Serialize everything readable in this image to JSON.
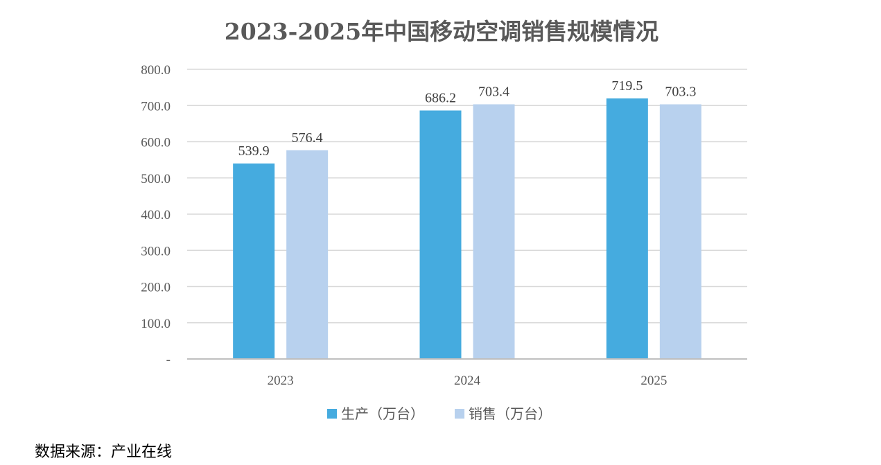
{
  "chart_data": {
    "type": "bar",
    "title": "2023-2025年中国移动空调销售规模情况",
    "categories": [
      "2023",
      "2024",
      "2025"
    ],
    "series": [
      {
        "name": "生产（万台）",
        "values": [
          539.9,
          686.2,
          719.5
        ],
        "color": "#45ABDF"
      },
      {
        "name": "销售（万台）",
        "values": [
          576.4,
          703.4,
          703.3
        ],
        "color": "#B8D1EE"
      }
    ],
    "data_labels": [
      [
        "539.9",
        "686.2",
        "719.5"
      ],
      [
        "576.4",
        "703.4",
        "703.3"
      ]
    ],
    "y_ticks": [
      {
        "value": 0,
        "label": "-"
      },
      {
        "value": 100,
        "label": "100.0"
      },
      {
        "value": 200,
        "label": "200.0"
      },
      {
        "value": 300,
        "label": "300.0"
      },
      {
        "value": 400,
        "label": "400.0"
      },
      {
        "value": 500,
        "label": "500.0"
      },
      {
        "value": 600,
        "label": "600.0"
      },
      {
        "value": 700,
        "label": "700.0"
      },
      {
        "value": 800,
        "label": "800.0"
      }
    ],
    "ylim": [
      0,
      800
    ],
    "xlabel": "",
    "ylabel": "",
    "grid": true,
    "legend_position": "bottom"
  },
  "footer": {
    "source": "数据来源：产业在线"
  }
}
